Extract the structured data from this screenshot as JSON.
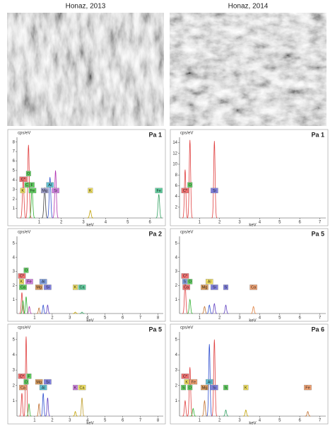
{
  "headers": [
    "Honaz, 2013",
    "Honaz, 2014"
  ],
  "chart_data": [
    {
      "type": "line",
      "title": "Pa 1",
      "y_label": "cps/eV",
      "x_label": "keV",
      "xlim": [
        0,
        6.6
      ],
      "xticks": [
        1,
        2,
        3,
        4,
        5,
        6
      ],
      "ylim": [
        0,
        8.5
      ],
      "yticks": [
        1,
        2,
        3,
        4,
        5,
        6,
        7,
        8
      ],
      "x": [
        0.28,
        0.52,
        0.68,
        1.25,
        1.49,
        1.74,
        3.31,
        6.4
      ],
      "values": [
        4,
        7.7,
        3,
        3.2,
        4.3,
        5,
        0.8,
        2.5
      ],
      "colors": [
        "#e04040",
        "#e04040",
        "#30b030",
        "#404040",
        "#3050d0",
        "#b030b0",
        "#c0a000",
        "#30a060"
      ],
      "elements": [
        {
          "name": "K",
          "x": 0.26,
          "color": "#f0e060"
        },
        {
          "name": "C",
          "x": 0.45,
          "color": "#60d060"
        },
        {
          "name": "Fe",
          "x": 0.7,
          "color": "#60d060"
        },
        {
          "name": "C*",
          "x": 0.28,
          "color": "#f07070"
        },
        {
          "name": "O",
          "x": 0.52,
          "color": "#60d060"
        },
        {
          "name": "F",
          "x": 0.68,
          "color": "#60d060"
        },
        {
          "name": "Mg",
          "x": 1.25,
          "color": "#a0a0d0"
        },
        {
          "name": "Al",
          "x": 1.49,
          "color": "#60c0d0"
        },
        {
          "name": "Si",
          "x": 1.74,
          "color": "#d080e0"
        },
        {
          "name": "K",
          "x": 3.31,
          "color": "#f0e060"
        },
        {
          "name": "Fe",
          "x": 6.4,
          "color": "#60d0a0"
        }
      ]
    },
    {
      "type": "line",
      "title": "Pa 1",
      "y_label": "cps/eV",
      "x_label": "keV",
      "xlim": [
        0,
        7.3
      ],
      "xticks": [
        1,
        2,
        3,
        4,
        5,
        6,
        7
      ],
      "ylim": [
        0,
        15
      ],
      "yticks": [
        2,
        4,
        6,
        8,
        10,
        12,
        14
      ],
      "x": [
        0.28,
        0.52,
        1.74
      ],
      "values": [
        9,
        14.5,
        14.3
      ],
      "colors": [
        "#e04040",
        "#e04040",
        "#e04040"
      ],
      "elements": [
        {
          "name": "C*",
          "x": 0.28,
          "color": "#f07070"
        },
        {
          "name": "O",
          "x": 0.52,
          "color": "#60d060"
        },
        {
          "name": "Si",
          "x": 1.74,
          "color": "#8080e0"
        }
      ]
    },
    {
      "type": "line",
      "title": "Pa 2",
      "y_label": "cps/eV",
      "x_label": "keV",
      "xlim": [
        0,
        8.3
      ],
      "xticks": [
        1,
        2,
        3,
        4,
        5,
        6,
        7,
        8
      ],
      "ylim": [
        0,
        5.5
      ],
      "yticks": [
        1,
        2,
        3,
        4,
        5
      ],
      "x": [
        0.28,
        0.34,
        0.52,
        0.7,
        1.25,
        1.49,
        1.74,
        3.31,
        3.69
      ],
      "values": [
        1.5,
        0.9,
        1.2,
        0.5,
        0.4,
        0.6,
        0.6,
        0.1,
        0.1
      ],
      "colors": [
        "#e04040",
        "#30b030",
        "#30b030",
        "#b030b0",
        "#c07030",
        "#3050d0",
        "#6040c0",
        "#c0a000",
        "#30a060"
      ],
      "elements": [
        {
          "name": "Ca",
          "x": 0.34,
          "color": "#60d060"
        },
        {
          "name": "K",
          "x": 0.26,
          "color": "#f0e060"
        },
        {
          "name": "C*",
          "x": 0.28,
          "color": "#f07070"
        },
        {
          "name": "O",
          "x": 0.52,
          "color": "#60d060"
        },
        {
          "name": "Fe",
          "x": 0.7,
          "color": "#d080e0"
        },
        {
          "name": "Mg",
          "x": 1.25,
          "color": "#e0a060"
        },
        {
          "name": "Al",
          "x": 1.49,
          "color": "#80a0e0"
        },
        {
          "name": "Si",
          "x": 1.74,
          "color": "#8080e0"
        },
        {
          "name": "K",
          "x": 3.31,
          "color": "#f0e060"
        },
        {
          "name": "Ca",
          "x": 3.69,
          "color": "#60d0a0"
        }
      ]
    },
    {
      "type": "line",
      "title": "Pa 5",
      "y_label": "cps/eV",
      "x_label": "keV",
      "xlim": [
        0,
        7.3
      ],
      "xticks": [
        1,
        2,
        3,
        4,
        5,
        6,
        7
      ],
      "ylim": [
        0,
        5.5
      ],
      "yticks": [
        1,
        2,
        3,
        4,
        5
      ],
      "x": [
        0.28,
        0.52,
        1.25,
        1.49,
        1.74,
        2.31,
        3.69
      ],
      "values": [
        2.2,
        1,
        0.5,
        0.6,
        0.7,
        0.6,
        0.5
      ],
      "colors": [
        "#e04040",
        "#30b030",
        "#c07030",
        "#3050d0",
        "#6040c0",
        "#6040c0",
        "#e08040"
      ],
      "elements": [
        {
          "name": "Ca",
          "x": 0.34,
          "color": "#f07070"
        },
        {
          "name": "S",
          "x": 0.26,
          "color": "#80a0e0"
        },
        {
          "name": "C*",
          "x": 0.28,
          "color": "#f07070"
        },
        {
          "name": "O",
          "x": 0.52,
          "color": "#60d060"
        },
        {
          "name": "Mg",
          "x": 1.25,
          "color": "#e0a060"
        },
        {
          "name": "Al",
          "x": 1.49,
          "color": "#f0e060"
        },
        {
          "name": "Si",
          "x": 1.74,
          "color": "#8080e0"
        },
        {
          "name": "S",
          "x": 2.31,
          "color": "#8080e0"
        },
        {
          "name": "Ca",
          "x": 3.69,
          "color": "#f0a070"
        }
      ]
    },
    {
      "type": "line",
      "title": "Pa 5",
      "y_label": "cps/eV",
      "x_label": "keV",
      "xlim": [
        0,
        8.3
      ],
      "xticks": [
        1,
        2,
        3,
        4,
        5,
        6,
        7,
        8
      ],
      "ylim": [
        0,
        5.5
      ],
      "yticks": [
        1,
        2,
        3,
        4,
        5
      ],
      "x": [
        0.28,
        0.52,
        0.68,
        1.25,
        1.49,
        1.74,
        3.31,
        3.69
      ],
      "values": [
        1.5,
        5.2,
        0.8,
        0.8,
        1.5,
        1.2,
        0.3,
        1.2
      ],
      "colors": [
        "#e04040",
        "#e04040",
        "#30b030",
        "#c07030",
        "#3050d0",
        "#6040c0",
        "#c0a000",
        "#c0a030"
      ],
      "elements": [
        {
          "name": "Ca",
          "x": 0.34,
          "color": "#f0a070"
        },
        {
          "name": "O",
          "x": 0.52,
          "color": "#60d060"
        },
        {
          "name": "Al",
          "x": 1.49,
          "color": "#60c0d0"
        },
        {
          "name": "C*",
          "x": 0.28,
          "color": "#f07070"
        },
        {
          "name": "F",
          "x": 0.68,
          "color": "#60d060"
        },
        {
          "name": "Mg",
          "x": 1.25,
          "color": "#e0a060"
        },
        {
          "name": "Si",
          "x": 1.74,
          "color": "#8080e0"
        },
        {
          "name": "K",
          "x": 3.31,
          "color": "#d080e0"
        },
        {
          "name": "Ca",
          "x": 3.69,
          "color": "#f0e060"
        }
      ]
    },
    {
      "type": "line",
      "title": "Pa 6",
      "y_label": "cps/eV",
      "x_label": "keV",
      "xlim": [
        0,
        7.3
      ],
      "xticks": [
        1,
        2,
        3,
        4,
        5,
        6,
        7
      ],
      "ylim": [
        0,
        5.5
      ],
      "yticks": [
        1,
        2,
        3,
        4,
        5
      ],
      "x": [
        0.28,
        0.52,
        0.68,
        1.25,
        1.49,
        1.74,
        2.31,
        3.31,
        6.4
      ],
      "values": [
        1,
        3.2,
        0.5,
        1,
        4.7,
        5,
        0.4,
        0.4,
        0.3
      ],
      "colors": [
        "#e04040",
        "#e04040",
        "#30b030",
        "#c07030",
        "#3050d0",
        "#e04040",
        "#30a060",
        "#c0a000",
        "#c07030"
      ],
      "elements": [
        {
          "name": "S",
          "x": 0.2,
          "color": "#60d060"
        },
        {
          "name": "K",
          "x": 0.36,
          "color": "#f0e060"
        },
        {
          "name": "O",
          "x": 0.52,
          "color": "#60d060"
        },
        {
          "name": "C*",
          "x": 0.28,
          "color": "#f07070"
        },
        {
          "name": "Fe",
          "x": 0.7,
          "color": "#f0a070"
        },
        {
          "name": "Mg",
          "x": 1.25,
          "color": "#e0a060"
        },
        {
          "name": "Al",
          "x": 1.49,
          "color": "#60c0d0"
        },
        {
          "name": "Si",
          "x": 1.74,
          "color": "#8080e0"
        },
        {
          "name": "S",
          "x": 2.31,
          "color": "#60d060"
        },
        {
          "name": "K",
          "x": 3.31,
          "color": "#f0e060"
        },
        {
          "name": "Fe",
          "x": 6.4,
          "color": "#f0a070"
        }
      ]
    }
  ]
}
